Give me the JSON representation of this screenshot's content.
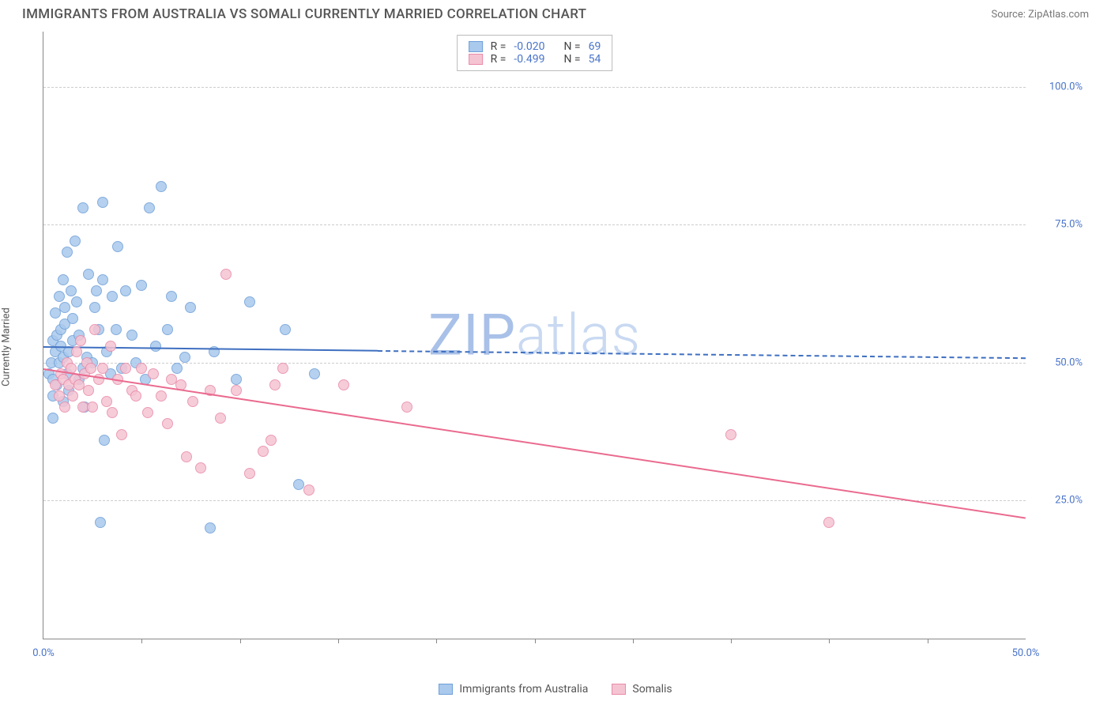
{
  "title": "IMMIGRANTS FROM AUSTRALIA VS SOMALI CURRENTLY MARRIED CORRELATION CHART",
  "source": "Source: ZipAtlas.com",
  "watermark": {
    "text_a": "ZIP",
    "text_b": "atlas",
    "color_a": "#a9c1e8",
    "color_b": "#c9d9f2"
  },
  "chart": {
    "type": "scatter",
    "background_color": "#ffffff",
    "grid_color": "#cccccc",
    "axis_color": "#888888",
    "xlim": [
      0,
      50
    ],
    "ylim": [
      0,
      110
    ],
    "x_axis": {
      "label_min": "0.0%",
      "label_max": "50.0%",
      "tick_step": 5
    },
    "y_axis": {
      "label": "Currently Married",
      "ticks": [
        25,
        50,
        75,
        100
      ],
      "tick_labels": [
        "25.0%",
        "50.0%",
        "75.0%",
        "100.0%"
      ]
    },
    "series": [
      {
        "name": "Immigrants from Australia",
        "fill_color": "#a9c9ed",
        "stroke_color": "#6f9fd8",
        "line_color": "#3e6fc0",
        "R": "-0.020",
        "N": "69",
        "trend": {
          "x0": 0,
          "y0": 53,
          "x1": 50,
          "y1": 51,
          "solid_until_x": 17
        },
        "points": [
          [
            0.3,
            48
          ],
          [
            0.4,
            50
          ],
          [
            0.5,
            54
          ],
          [
            0.5,
            47
          ],
          [
            0.5,
            40
          ],
          [
            0.5,
            44
          ],
          [
            0.6,
            52
          ],
          [
            0.6,
            59
          ],
          [
            0.7,
            55
          ],
          [
            0.7,
            46
          ],
          [
            0.8,
            50
          ],
          [
            0.8,
            62
          ],
          [
            0.9,
            53
          ],
          [
            0.9,
            56
          ],
          [
            1.0,
            51
          ],
          [
            1.0,
            43
          ],
          [
            1.0,
            65
          ],
          [
            1.1,
            57
          ],
          [
            1.1,
            60
          ],
          [
            1.2,
            48
          ],
          [
            1.2,
            70
          ],
          [
            1.3,
            52
          ],
          [
            1.3,
            45
          ],
          [
            1.4,
            63
          ],
          [
            1.5,
            54
          ],
          [
            1.5,
            58
          ],
          [
            1.6,
            72
          ],
          [
            1.7,
            61
          ],
          [
            1.8,
            47
          ],
          [
            1.8,
            55
          ],
          [
            2.0,
            78
          ],
          [
            2.0,
            49
          ],
          [
            2.1,
            42
          ],
          [
            2.2,
            51
          ],
          [
            2.3,
            66
          ],
          [
            2.5,
            50
          ],
          [
            2.6,
            60
          ],
          [
            2.7,
            63
          ],
          [
            2.8,
            56
          ],
          [
            3.0,
            65
          ],
          [
            3.1,
            36
          ],
          [
            3.2,
            52
          ],
          [
            3.4,
            48
          ],
          [
            3.5,
            62
          ],
          [
            3.7,
            56
          ],
          [
            3.8,
            71
          ],
          [
            4.0,
            49
          ],
          [
            4.2,
            63
          ],
          [
            4.5,
            55
          ],
          [
            4.7,
            50
          ],
          [
            5.0,
            64
          ],
          [
            5.2,
            47
          ],
          [
            5.4,
            78
          ],
          [
            5.7,
            53
          ],
          [
            6.0,
            82
          ],
          [
            6.3,
            56
          ],
          [
            6.5,
            62
          ],
          [
            6.8,
            49
          ],
          [
            7.2,
            51
          ],
          [
            7.5,
            60
          ],
          [
            2.9,
            21
          ],
          [
            8.5,
            20
          ],
          [
            8.7,
            52
          ],
          [
            9.8,
            47
          ],
          [
            10.5,
            61
          ],
          [
            12.3,
            56
          ],
          [
            13.0,
            28
          ],
          [
            13.8,
            48
          ],
          [
            3.0,
            79
          ]
        ]
      },
      {
        "name": "Somalis",
        "fill_color": "#f5c4d3",
        "stroke_color": "#e98aa8",
        "line_color": "#ea6a8f",
        "R": "-0.499",
        "N": "54",
        "trend": {
          "x0": 0,
          "y0": 49,
          "x1": 50,
          "y1": 22,
          "solid_until_x": 50
        },
        "points": [
          [
            0.6,
            46
          ],
          [
            0.8,
            44
          ],
          [
            0.9,
            48
          ],
          [
            1.0,
            47
          ],
          [
            1.1,
            42
          ],
          [
            1.2,
            50
          ],
          [
            1.3,
            46
          ],
          [
            1.4,
            49
          ],
          [
            1.5,
            44
          ],
          [
            1.6,
            47
          ],
          [
            1.7,
            52
          ],
          [
            1.8,
            46
          ],
          [
            1.9,
            54
          ],
          [
            2.0,
            42
          ],
          [
            2.1,
            48
          ],
          [
            2.2,
            50
          ],
          [
            2.3,
            45
          ],
          [
            2.4,
            49
          ],
          [
            2.5,
            42
          ],
          [
            2.6,
            56
          ],
          [
            2.8,
            47
          ],
          [
            3.0,
            49
          ],
          [
            3.2,
            43
          ],
          [
            3.4,
            53
          ],
          [
            3.5,
            41
          ],
          [
            3.8,
            47
          ],
          [
            4.0,
            37
          ],
          [
            4.2,
            49
          ],
          [
            4.5,
            45
          ],
          [
            4.7,
            44
          ],
          [
            5.0,
            49
          ],
          [
            5.3,
            41
          ],
          [
            5.6,
            48
          ],
          [
            6.0,
            44
          ],
          [
            6.3,
            39
          ],
          [
            6.5,
            47
          ],
          [
            7.0,
            46
          ],
          [
            7.3,
            33
          ],
          [
            7.6,
            43
          ],
          [
            8.0,
            31
          ],
          [
            8.5,
            45
          ],
          [
            9.0,
            40
          ],
          [
            9.3,
            66
          ],
          [
            9.8,
            45
          ],
          [
            10.5,
            30
          ],
          [
            11.2,
            34
          ],
          [
            11.8,
            46
          ],
          [
            13.5,
            27
          ],
          [
            15.3,
            46
          ],
          [
            18.5,
            42
          ],
          [
            35.0,
            37
          ],
          [
            40.0,
            21
          ],
          [
            12.2,
            49
          ],
          [
            11.6,
            36
          ]
        ]
      }
    ]
  },
  "legend": {
    "items": [
      {
        "label": "Immigrants from Australia",
        "fill": "#a9c9ed",
        "stroke": "#6f9fd8"
      },
      {
        "label": "Somalis",
        "fill": "#f5c4d3",
        "stroke": "#e98aa8"
      }
    ]
  }
}
